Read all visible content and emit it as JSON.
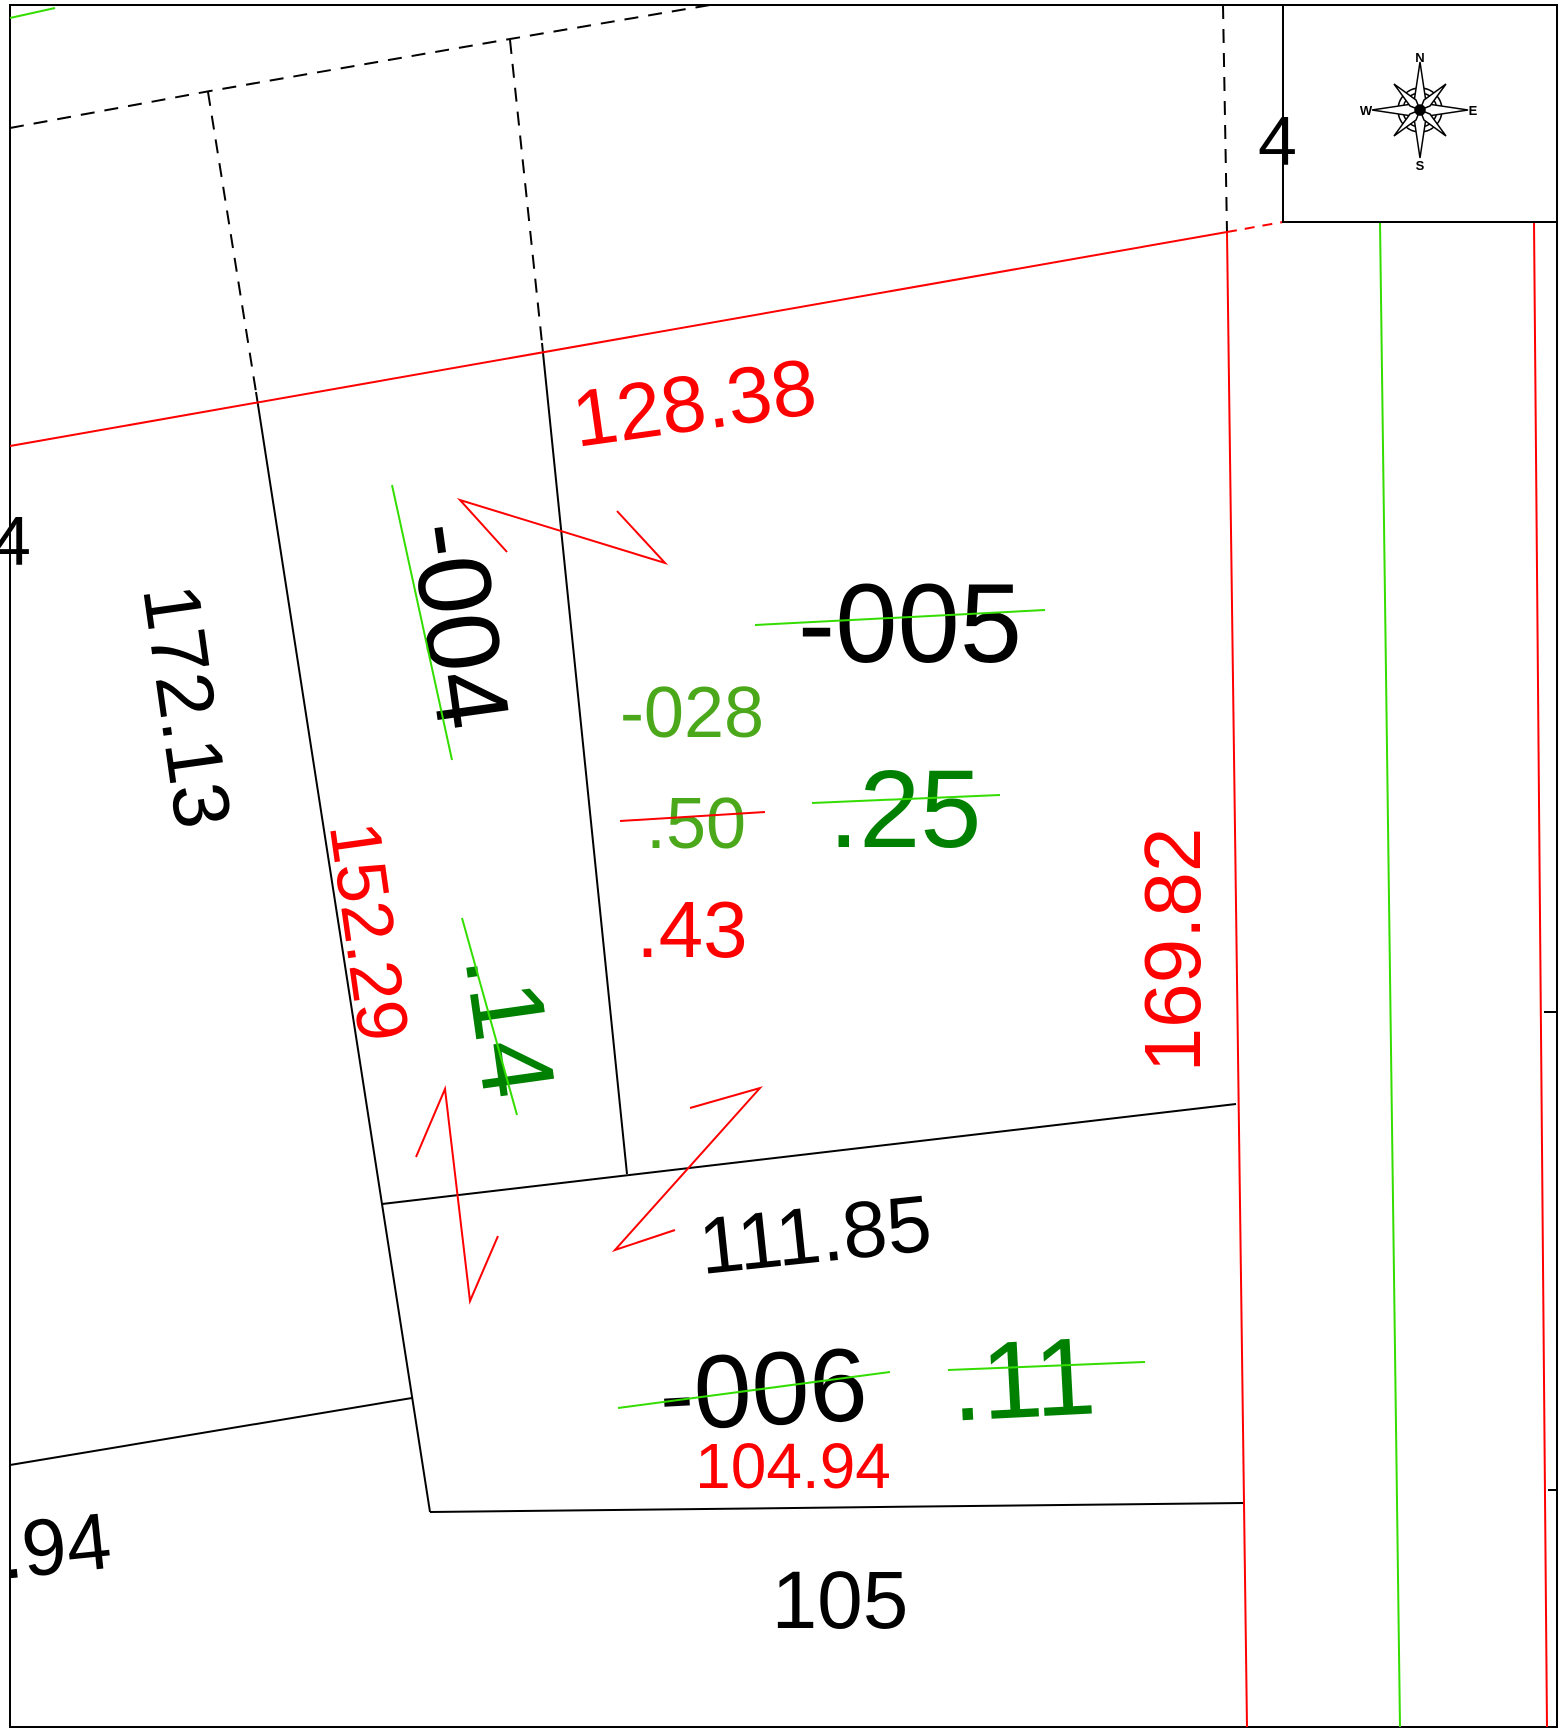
{
  "colors": {
    "black": "#000000",
    "red": "#ff0000",
    "dark_green": "#008000",
    "light_green": "#4aa81a",
    "bright_green": "#33dd00"
  },
  "compass": {
    "north": "N",
    "south": "S",
    "east": "E",
    "west": "W"
  },
  "parcels": {
    "p004": {
      "number": "-004",
      "acres_struck": ".14"
    },
    "p005": {
      "number": "-005",
      "acres_struck": ".25"
    },
    "p028": {
      "number": "-028",
      "acres_struck": ".50",
      "acres": ".43"
    },
    "p006": {
      "number": "-006",
      "acres_struck": ".11"
    }
  },
  "dimensions": {
    "top_red": "128.38",
    "left_red": "152.29",
    "right_red": "169.82",
    "bottom_red": "104.94",
    "left_black": "172.13",
    "lower_black": "111.85",
    "bottom_black": "105",
    "left_edge_partial": ".94",
    "left_edge_partial_top": "4",
    "top_right_partial": "4"
  }
}
